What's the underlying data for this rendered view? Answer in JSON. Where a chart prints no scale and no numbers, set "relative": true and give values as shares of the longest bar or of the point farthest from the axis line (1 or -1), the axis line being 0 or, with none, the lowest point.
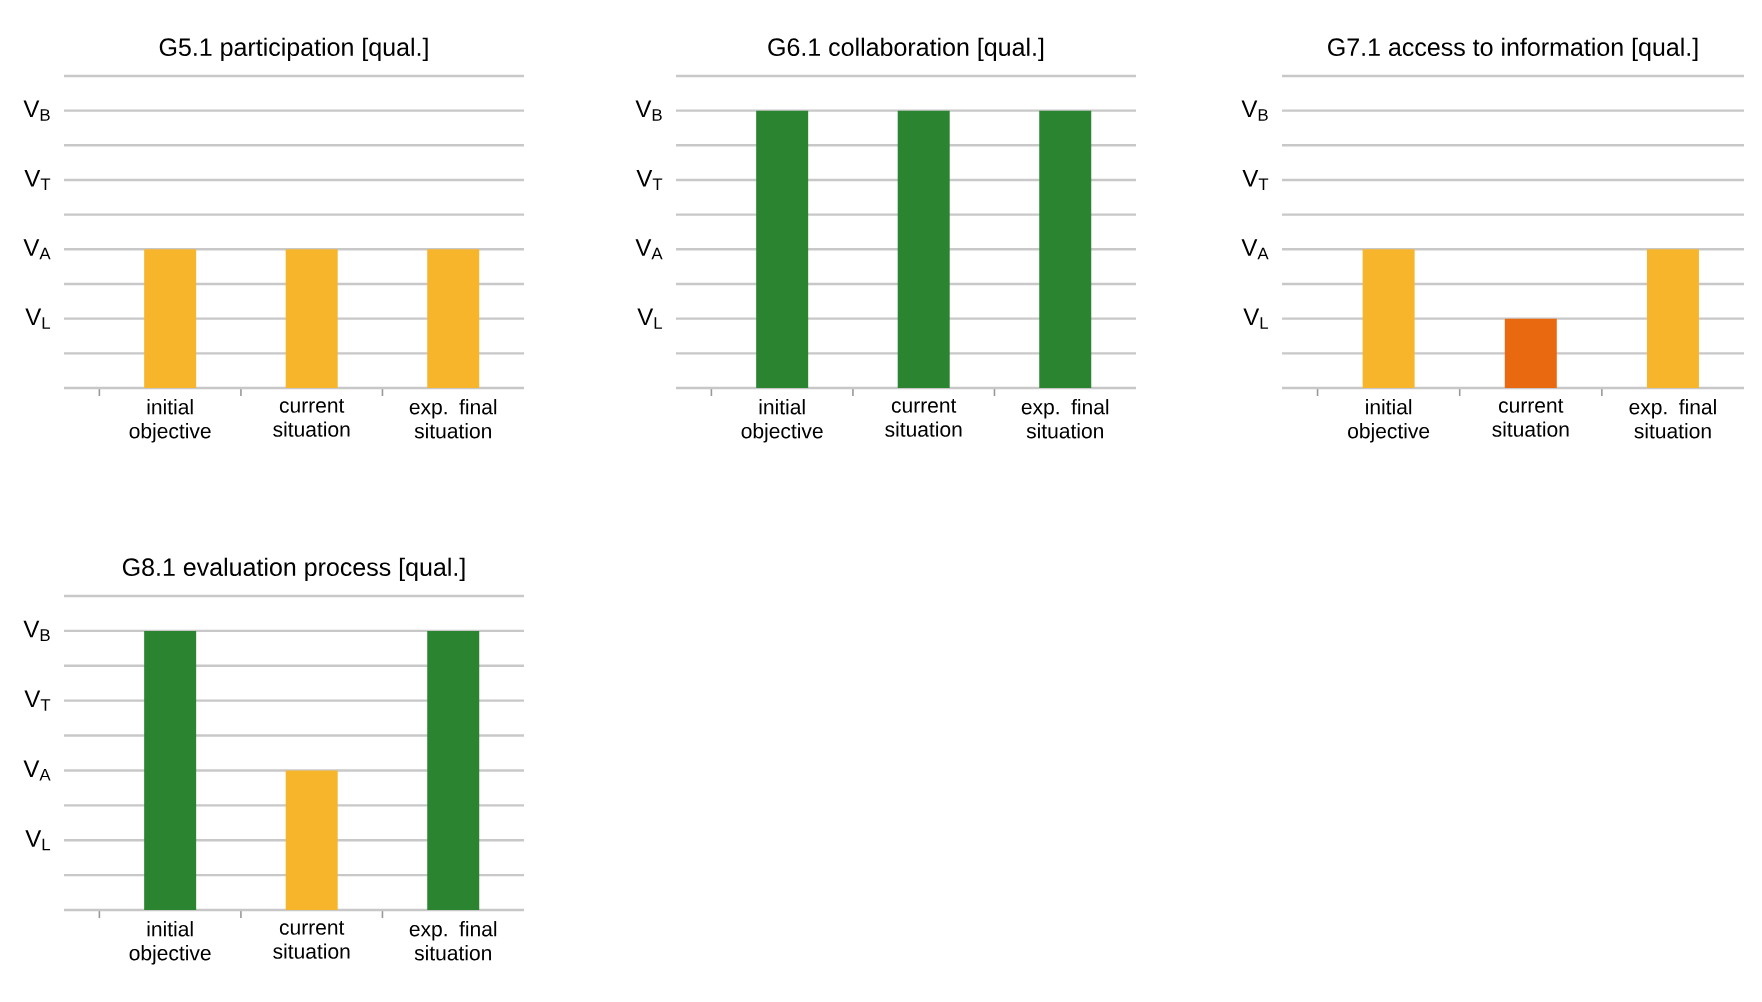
{
  "chart_data": [
    {
      "type": "bar",
      "title": "G5.1 participation [qual.]",
      "categories": [
        "initial objective",
        "current situation",
        "exp. final situation"
      ],
      "values": [
        1,
        1,
        1
      ],
      "colors": [
        "#f7b52c",
        "#f7b52c",
        "#f7b52c"
      ],
      "relative": true,
      "ref_lines": [
        {
          "axis": "y",
          "value": 0.25,
          "label": null,
          "color": "#c8c8c8"
        },
        {
          "axis": "y",
          "value": 0.5,
          "label": "V$_{L}$",
          "color": "#c8c8c8"
        },
        {
          "axis": "y",
          "value": 0.75,
          "label": null,
          "color": "#c8c8c8"
        },
        {
          "axis": "y",
          "value": 1,
          "label": "V$_{A}$",
          "color": "#c8c8c8"
        },
        {
          "axis": "y",
          "value": 1.25,
          "label": null,
          "color": "#c8c8c8"
        },
        {
          "axis": "y",
          "value": 1.5,
          "label": "V$_{T}$",
          "color": "#c8c8c8"
        },
        {
          "axis": "y",
          "value": 1.75,
          "label": null,
          "color": "#c8c8c8"
        },
        {
          "axis": "y",
          "value": 2,
          "label": "V$_{B}$",
          "color": "#c8c8c8"
        },
        {
          "axis": "y",
          "value": 2.25,
          "label": null,
          "color": "#c8c8c8"
        }
      ]
    },
    {
      "type": "bar",
      "title": "G6.1 collaboration [qual.]",
      "categories": [
        "initial objective",
        "current situation",
        "exp. final situation"
      ],
      "values": [
        1,
        1,
        1
      ],
      "colors": [
        "#2a8430",
        "#2a8430",
        "#2a8430"
      ],
      "relative": true,
      "ref_lines": [
        {
          "axis": "y",
          "value": 0.125,
          "label": null,
          "color": "#c8c8c8"
        },
        {
          "axis": "y",
          "value": 0.25,
          "label": "V$_{L}$",
          "color": "#c8c8c8"
        },
        {
          "axis": "y",
          "value": 0.375,
          "label": null,
          "color": "#c8c8c8"
        },
        {
          "axis": "y",
          "value": 0.5,
          "label": "V$_{A}$",
          "color": "#c8c8c8"
        },
        {
          "axis": "y",
          "value": 0.625,
          "label": null,
          "color": "#c8c8c8"
        },
        {
          "axis": "y",
          "value": 0.75,
          "label": "V$_{T}$",
          "color": "#c8c8c8"
        },
        {
          "axis": "y",
          "value": 0.875,
          "label": null,
          "color": "#c8c8c8"
        },
        {
          "axis": "y",
          "value": 1,
          "label": "V$_{B}$",
          "color": "#c8c8c8"
        },
        {
          "axis": "y",
          "value": 1.125,
          "label": null,
          "color": "#c8c8c8"
        }
      ]
    },
    {
      "type": "bar",
      "title": "G7.1 access to information [qual.]",
      "categories": [
        "initial objective",
        "current situation",
        "exp. final situation"
      ],
      "values": [
        1,
        0.5,
        1
      ],
      "colors": [
        "#f7b52c",
        "#e8690f",
        "#f7b52c"
      ],
      "relative": true,
      "ref_lines": [
        {
          "axis": "y",
          "value": 0.25,
          "label": null,
          "color": "#c8c8c8"
        },
        {
          "axis": "y",
          "value": 0.5,
          "label": "V$_{L}$",
          "color": "#c8c8c8"
        },
        {
          "axis": "y",
          "value": 0.75,
          "label": null,
          "color": "#c8c8c8"
        },
        {
          "axis": "y",
          "value": 1,
          "label": "V$_{A}$",
          "color": "#c8c8c8"
        },
        {
          "axis": "y",
          "value": 1.25,
          "label": null,
          "color": "#c8c8c8"
        },
        {
          "axis": "y",
          "value": 1.5,
          "label": "V$_{T}$",
          "color": "#c8c8c8"
        },
        {
          "axis": "y",
          "value": 1.75,
          "label": null,
          "color": "#c8c8c8"
        },
        {
          "axis": "y",
          "value": 2,
          "label": "V$_{B}$",
          "color": "#c8c8c8"
        },
        {
          "axis": "y",
          "value": 2.25,
          "label": null,
          "color": "#c8c8c8"
        }
      ]
    },
    {
      "type": "bar",
      "title": "G8.1 evaluation process [qual.]",
      "categories": [
        "initial objective",
        "current situation",
        "exp. final situation"
      ],
      "values": [
        1,
        0.5,
        1
      ],
      "colors": [
        "#2a8430",
        "#f7b52c",
        "#2a8430"
      ],
      "relative": true,
      "ref_lines": [
        {
          "axis": "y",
          "value": 0.125,
          "label": null,
          "color": "#c8c8c8"
        },
        {
          "axis": "y",
          "value": 0.25,
          "label": "V$_{L}$",
          "color": "#c8c8c8"
        },
        {
          "axis": "y",
          "value": 0.375,
          "label": null,
          "color": "#c8c8c8"
        },
        {
          "axis": "y",
          "value": 0.5,
          "label": "V$_{A}$",
          "color": "#c8c8c8"
        },
        {
          "axis": "y",
          "value": 0.625,
          "label": null,
          "color": "#c8c8c8"
        },
        {
          "axis": "y",
          "value": 0.75,
          "label": "V$_{T}$",
          "color": "#c8c8c8"
        },
        {
          "axis": "y",
          "value": 0.875,
          "label": null,
          "color": "#c8c8c8"
        },
        {
          "axis": "y",
          "value": 1,
          "label": "V$_{B}$",
          "color": "#c8c8c8"
        },
        {
          "axis": "y",
          "value": 1.125,
          "label": null,
          "color": "#c8c8c8"
        }
      ]
    }
  ]
}
